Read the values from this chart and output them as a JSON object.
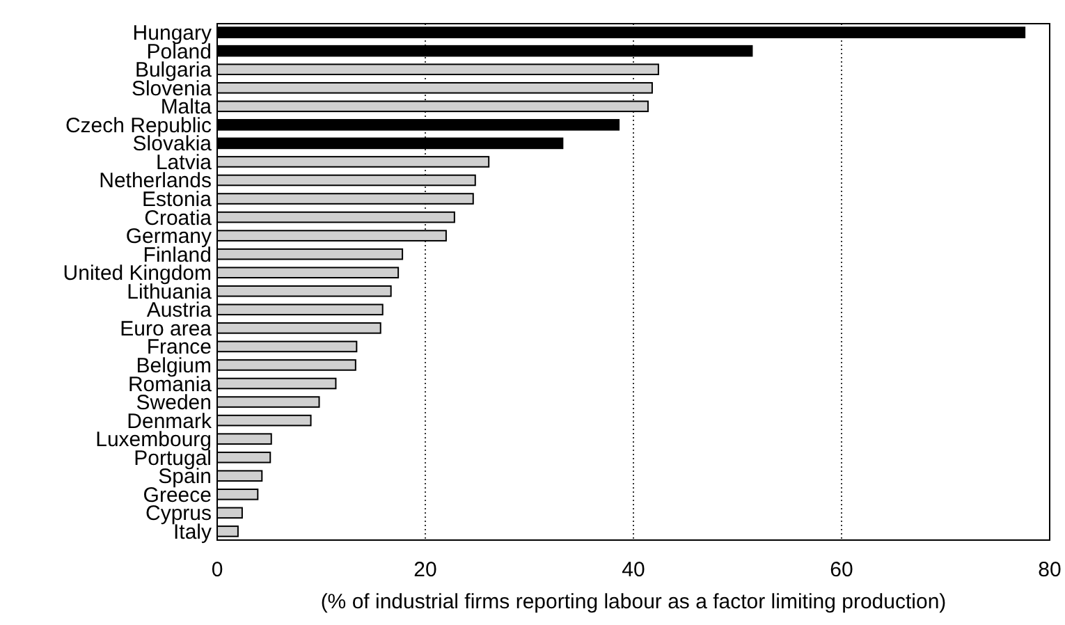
{
  "chart_data": {
    "type": "bar",
    "orientation": "horizontal",
    "xlabel": "(% of industrial firms reporting labour as a factor limiting production)",
    "categories": [
      "Hungary",
      "Poland",
      "Bulgaria",
      "Slovenia",
      "Malta",
      "Czech Republic",
      "Slovakia",
      "Latvia",
      "Netherlands",
      "Estonia",
      "Croatia",
      "Germany",
      "Finland",
      "United Kingdom",
      "Lithuania",
      "Austria",
      "Euro area",
      "France",
      "Belgium",
      "Romania",
      "Sweden",
      "Denmark",
      "Luxembourg",
      "Portugal",
      "Spain",
      "Greece",
      "Cyprus",
      "Italy"
    ],
    "values": [
      77.6,
      51.4,
      42.4,
      41.8,
      41.4,
      38.6,
      33.2,
      26.1,
      24.8,
      24.6,
      22.8,
      22.0,
      17.8,
      17.4,
      16.7,
      15.9,
      15.7,
      13.4,
      13.3,
      11.4,
      9.8,
      9.0,
      5.2,
      5.1,
      4.3,
      3.9,
      2.4,
      2.0
    ],
    "colors": [
      "#000000",
      "#000000",
      "#d0d0d0",
      "#d0d0d0",
      "#d0d0d0",
      "#000000",
      "#000000",
      "#d0d0d0",
      "#d0d0d0",
      "#d0d0d0",
      "#d0d0d0",
      "#d0d0d0",
      "#d0d0d0",
      "#d0d0d0",
      "#d0d0d0",
      "#d0d0d0",
      "#d0d0d0",
      "#d0d0d0",
      "#d0d0d0",
      "#d0d0d0",
      "#d0d0d0",
      "#d0d0d0",
      "#d0d0d0",
      "#d0d0d0",
      "#d0d0d0",
      "#d0d0d0",
      "#d0d0d0",
      "#d0d0d0"
    ],
    "xlim": [
      0,
      80
    ],
    "xticks": [
      0,
      20,
      40,
      60,
      80
    ],
    "grid": "x"
  }
}
